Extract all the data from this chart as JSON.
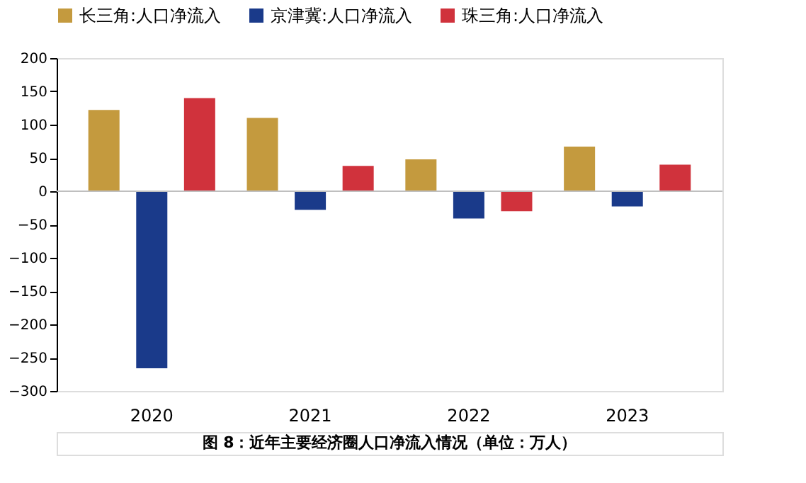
{
  "chart_data": {
    "type": "bar",
    "categories": [
      "2020",
      "2021",
      "2022",
      "2023"
    ],
    "series": [
      {
        "name": "长三角:人口净流入",
        "color": "#c49a3e",
        "values": [
          122,
          110,
          48,
          67
        ]
      },
      {
        "name": "京津冀:人口净流入",
        "color": "#1a3a8a",
        "values": [
          -266,
          -28,
          -41,
          -23
        ]
      },
      {
        "name": "珠三角:人口净流入",
        "color": "#d0323c",
        "values": [
          140,
          38,
          -30,
          40
        ]
      }
    ],
    "ylim": [
      -300,
      200
    ],
    "yticks": [
      -300,
      -250,
      -200,
      -150,
      -100,
      -50,
      0,
      50,
      100,
      150,
      200
    ],
    "ref_lines": [
      {
        "axis": "y",
        "value": 0,
        "color": "#bfbfbf"
      }
    ],
    "grid": false,
    "legend": "top",
    "annotations": [
      "图 8：近年主要经济圈人口净流入情况（单位：万人）"
    ]
  }
}
